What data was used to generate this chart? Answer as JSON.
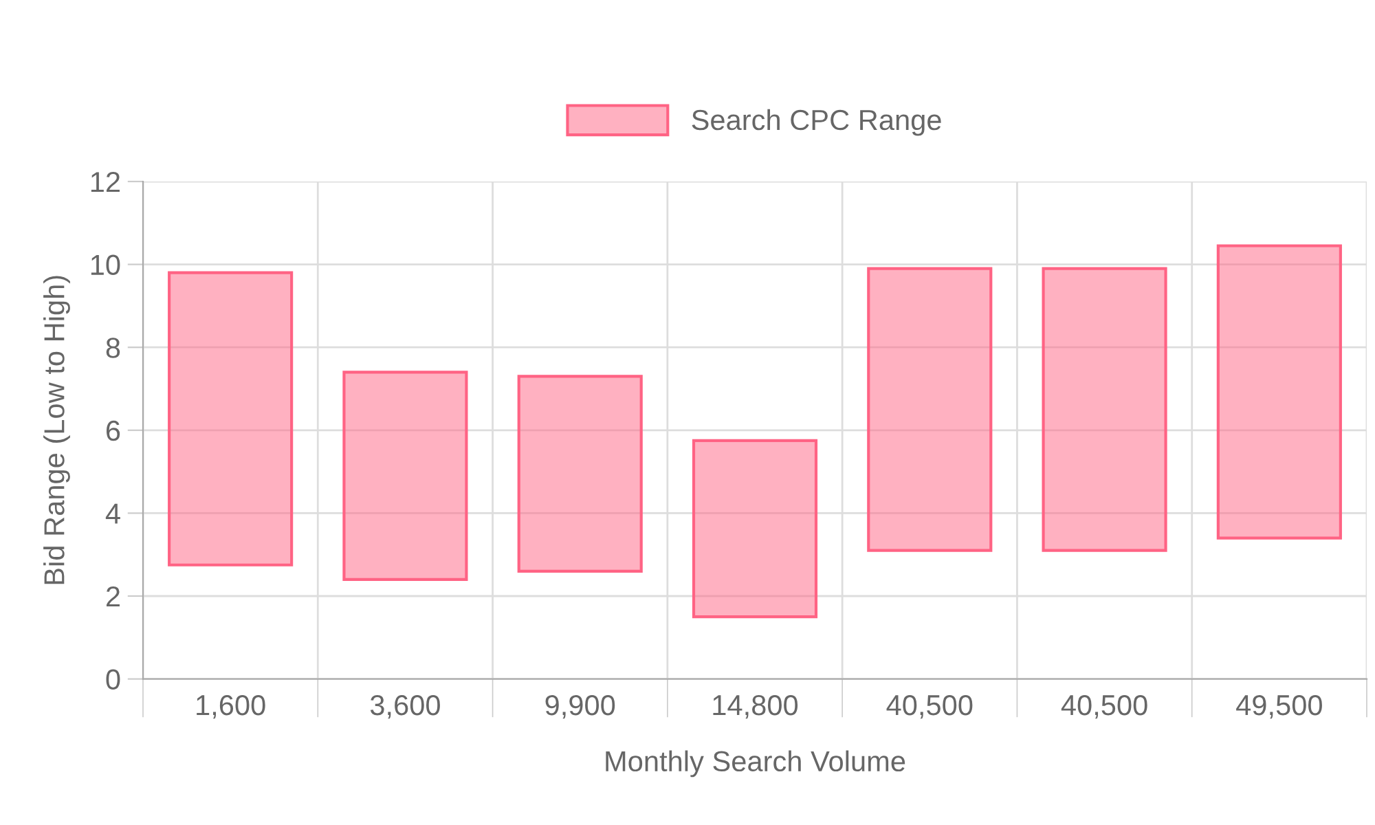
{
  "chart_data": {
    "type": "bar",
    "xlabel": "Monthly Search Volume",
    "ylabel": "Bid Range (Low to High)",
    "categories": [
      "1,600",
      "3,600",
      "9,900",
      "14,800",
      "40,500",
      "40,500",
      "49,500"
    ],
    "series": [
      {
        "name": "Search CPC Range",
        "color": "#ff6384",
        "base": [
          2.75,
          2.4,
          2.6,
          1.5,
          3.1,
          3.1,
          3.4
        ],
        "values": [
          7.05,
          5.0,
          4.7,
          4.25,
          6.8,
          6.8,
          7.05
        ]
      }
    ],
    "ylim": [
      0,
      12
    ],
    "yticks": [
      0,
      2,
      4,
      6,
      8,
      10,
      12
    ],
    "grid": true,
    "legend": "top"
  }
}
